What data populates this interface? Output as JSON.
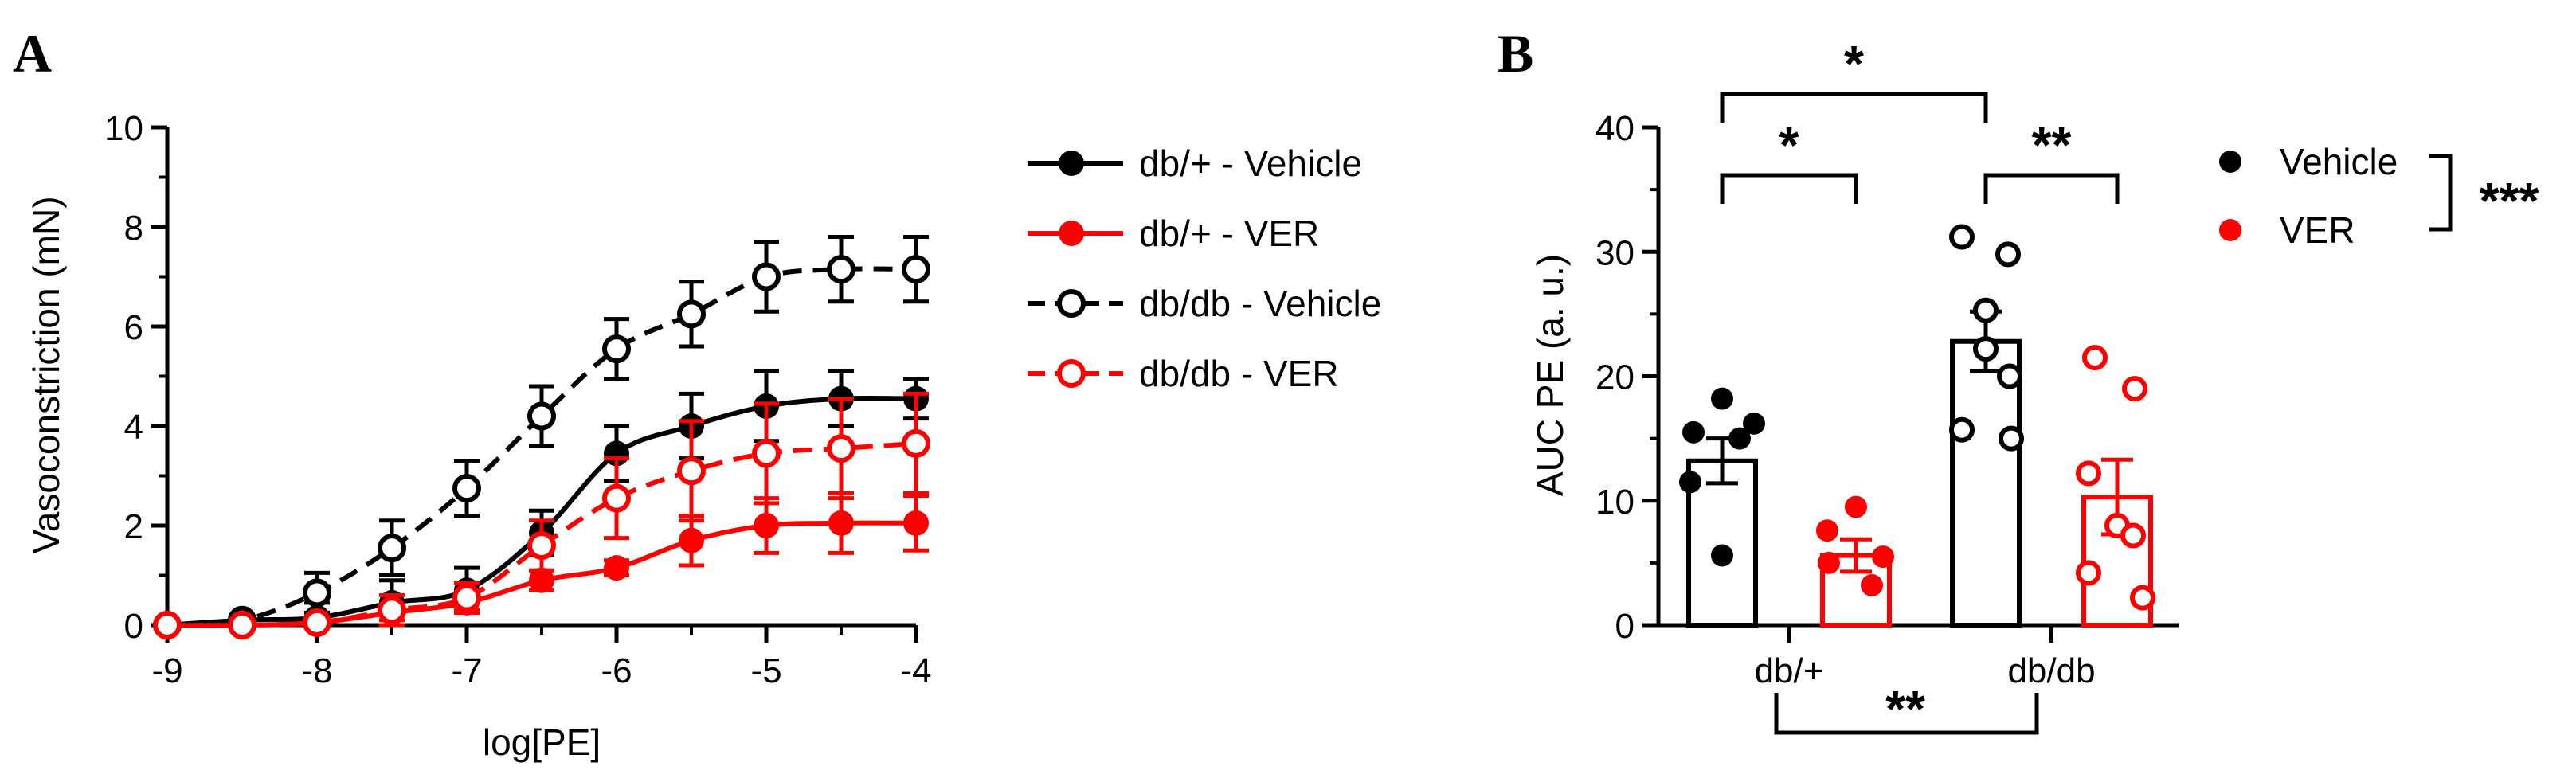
{
  "chart_data": [
    {
      "panel": "A",
      "type": "line",
      "xlabel": "log[PE]",
      "ylabel": "Vasoconstriction (mN)",
      "xlim": [
        -9,
        -4
      ],
      "ylim": [
        0,
        10
      ],
      "x_ticks": [
        "-9",
        "-8",
        "-7",
        "-6",
        "-5",
        "-4"
      ],
      "y_ticks": [
        "0",
        "2",
        "4",
        "6",
        "8",
        "10"
      ],
      "x": [
        -9,
        -8.5,
        -8,
        -7.5,
        -7,
        -6.5,
        -6,
        -5.5,
        -5,
        -4.5,
        -4
      ],
      "legend_placement": "right",
      "series": [
        {
          "name": "db/+ - Vehicle",
          "color": "#000000",
          "marker": "filled",
          "line": "solid",
          "values": [
            0.0,
            0.1,
            0.15,
            0.45,
            0.7,
            1.85,
            3.45,
            4.0,
            4.4,
            4.55,
            4.55
          ],
          "errors": [
            0.05,
            0.1,
            0.3,
            0.45,
            0.45,
            0.45,
            0.55,
            0.65,
            0.7,
            0.55,
            0.4
          ]
        },
        {
          "name": "db/+ - VER",
          "color": "#ff0000",
          "marker": "filled",
          "line": "solid",
          "values": [
            0.0,
            0.0,
            0.05,
            0.25,
            0.45,
            0.9,
            1.15,
            1.7,
            2.0,
            2.05,
            2.05
          ],
          "errors": [
            0.05,
            0.05,
            0.1,
            0.15,
            0.15,
            0.2,
            0.15,
            0.5,
            0.55,
            0.6,
            0.55
          ]
        },
        {
          "name": "db/db - Vehicle",
          "color": "#000000",
          "marker": "open",
          "line": "dashed",
          "values": [
            0.0,
            0.1,
            0.65,
            1.55,
            2.75,
            4.2,
            5.55,
            6.25,
            7.0,
            7.15,
            7.15
          ],
          "errors": [
            0.05,
            0.1,
            0.4,
            0.55,
            0.55,
            0.6,
            0.6,
            0.65,
            0.7,
            0.65,
            0.65
          ]
        },
        {
          "name": "db/db - VER",
          "color": "#ff0000",
          "marker": "open",
          "line": "dashed",
          "values": [
            0.0,
            0.0,
            0.05,
            0.3,
            0.55,
            1.6,
            2.55,
            3.1,
            3.45,
            3.55,
            3.65
          ],
          "errors": [
            0.05,
            0.05,
            0.1,
            0.3,
            0.3,
            0.5,
            0.8,
            1.0,
            1.0,
            1.0,
            1.0
          ]
        }
      ]
    },
    {
      "panel": "B",
      "type": "bar",
      "ylabel": "AUC PE (a. u.)",
      "ylim": [
        0,
        40
      ],
      "y_ticks": [
        "0",
        "10",
        "20",
        "30",
        "40"
      ],
      "categories": [
        "db/+",
        "db/db"
      ],
      "legend_placement": "right",
      "bars": [
        {
          "group": "db/+",
          "series": "Vehicle",
          "mean": 13.2,
          "sem": 1.8,
          "color": "#000000",
          "marker": "filled",
          "points": [
            18.2,
            16.2,
            15.5,
            15.0,
            11.5,
            5.6
          ]
        },
        {
          "group": "db/+",
          "series": "VER",
          "mean": 5.6,
          "sem": 1.3,
          "color": "#ff0000",
          "marker": "filled",
          "points": [
            9.5,
            7.6,
            5.5,
            5.0,
            3.2
          ]
        },
        {
          "group": "db/db",
          "series": "Vehicle",
          "mean": 22.8,
          "sem": 2.4,
          "color": "#000000",
          "marker": "open",
          "points": [
            31.2,
            29.8,
            25.3,
            22.2,
            20.0,
            15.7,
            15.0
          ]
        },
        {
          "group": "db/db",
          "series": "VER",
          "mean": 10.3,
          "sem": 3.0,
          "color": "#ff0000",
          "marker": "open",
          "points": [
            21.5,
            19.0,
            12.2,
            8.0,
            7.2,
            4.2,
            2.2
          ]
        }
      ],
      "legend": [
        {
          "name": "Vehicle",
          "color": "#000000"
        },
        {
          "name": "VER",
          "color": "#ff0000"
        }
      ],
      "annotations": [
        {
          "label": "*",
          "between": "db/+ Vehicle vs db/db Vehicle"
        },
        {
          "label": "*",
          "between": "db/+ Vehicle vs db/+ VER"
        },
        {
          "label": "**",
          "between": "db/db Vehicle vs db/db VER"
        },
        {
          "label": "**",
          "between": "db/+ vs db/db"
        },
        {
          "label": "***",
          "between": "Vehicle vs VER"
        }
      ]
    }
  ],
  "panel_letters": {
    "a": "A",
    "b": "B"
  }
}
